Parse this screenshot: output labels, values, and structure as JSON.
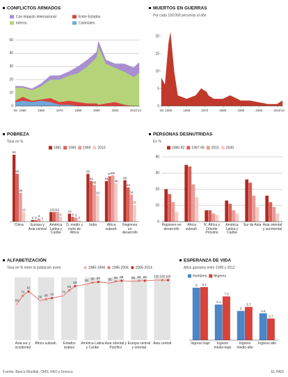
{
  "chart_data": [
    {
      "type": "area",
      "stacked": true,
      "title": "CONFLICTOS ARMADOS",
      "x": [
        1946,
        1950,
        1955,
        1960,
        1965,
        1970,
        1975,
        1980,
        1985,
        1990,
        1991,
        1995,
        2000,
        2005,
        2010,
        2013
      ],
      "series": [
        {
          "name": "Coloniales",
          "color": "#6fa8dc",
          "values": [
            3,
            4,
            3,
            4,
            3,
            1,
            1,
            0,
            0,
            0,
            0,
            0,
            0,
            0,
            0,
            0
          ]
        },
        {
          "name": "Entre Estados",
          "color": "#d9423a",
          "values": [
            1,
            3,
            1,
            1,
            3,
            2,
            3,
            3,
            2,
            2,
            1,
            2,
            3,
            1,
            0,
            0
          ]
        },
        {
          "name": "Interno",
          "color": "#b5d47a",
          "values": [
            10,
            7,
            8,
            10,
            14,
            17,
            19,
            22,
            28,
            35,
            44,
            30,
            26,
            25,
            22,
            25
          ]
        },
        {
          "name": "Con impacto internacional",
          "color": "#a98fd0",
          "values": [
            1,
            1,
            1,
            2,
            3,
            3,
            3,
            5,
            5,
            4,
            4,
            3,
            3,
            6,
            7,
            8
          ]
        }
      ],
      "xlim": [
        1946,
        2013
      ],
      "xticks": [
        {
          "value": 1946,
          "label": "'46"
        },
        1950,
        1960,
        1970,
        1980,
        1990,
        2000,
        2010,
        {
          "value": 2013,
          "label": "'13"
        }
      ],
      "ylim": [
        0,
        55
      ],
      "yticks": [
        0,
        10,
        20,
        30,
        40,
        50
      ],
      "grid": true
    },
    {
      "type": "area",
      "title": "MUERTOS EN GUERRAS",
      "subtitle": "Por cada 100.000 personas al año",
      "x": [
        1946,
        1948,
        1950,
        1951,
        1953,
        1955,
        1960,
        1965,
        1968,
        1971,
        1972,
        1975,
        1980,
        1984,
        1988,
        1990,
        1995,
        2000,
        2005,
        2010,
        2013
      ],
      "values": [
        8,
        6,
        18,
        21,
        10,
        3,
        2,
        3,
        5,
        4,
        3,
        2,
        2,
        3,
        2,
        1.5,
        1.5,
        1,
        0.5,
        0.5,
        1.5
      ],
      "color": "#c0392b",
      "xlim": [
        1946,
        2013
      ],
      "xticks": [
        {
          "value": 1946,
          "label": "'46"
        },
        1950,
        1960,
        1970,
        1980,
        1990,
        2000,
        2010,
        {
          "value": 2013,
          "label": "'13"
        }
      ],
      "ylim": [
        0,
        22
      ],
      "yticks": [
        0,
        5,
        10,
        15,
        20
      ]
    },
    {
      "type": "bar",
      "title": "POBREZA",
      "subtitle": "Tasa en %",
      "data_labels": true,
      "categories": [
        "China",
        "Europa y Asia central",
        "América Latina y Caribe",
        "O. medio y norte de África",
        "India",
        "África subsah.",
        "Regiones en desarrollo"
      ],
      "series": [
        {
          "name": "1981",
          "color": "#b22a22",
          "values": [
            84,
            2,
            12,
            10,
            60,
            51,
            52
          ]
        },
        {
          "name": "1990",
          "color": "#d9605a",
          "values": [
            60,
            2,
            12,
            6,
            51,
            57,
            43
          ]
        },
        {
          "name": "1999",
          "color": "#e99a94",
          "values": [
            36,
            4,
            12,
            5,
            46,
            58,
            34
          ]
        },
        {
          "name": "2010",
          "color": "#f5c9c5",
          "values": [
            12,
            1,
            6,
            2,
            33,
            48,
            21
          ]
        }
      ]
    },
    {
      "type": "bar",
      "title": "PERSONAS DESNUTRIDAS",
      "subtitle": "En %",
      "categories": [
        "Regiones en desarrollo",
        "África subsah.",
        "N. África y Oriente Próximo",
        "América Latina y Caribe",
        "Sur de Asia",
        "Asia oriental y suroriental"
      ],
      "series": [
        {
          "name": "1990-92",
          "color": "#b22a22",
          "values": [
            20,
            35,
            7,
            13,
            26,
            16
          ]
        },
        {
          "name": "1997-99",
          "color": "#d9605a",
          "values": [
            17,
            34,
            7,
            11,
            24,
            12
          ]
        },
        {
          "name": "2015",
          "color": "#e99a94",
          "values": [
            12,
            23,
            5,
            7,
            16,
            9
          ]
        },
        {
          "name": "2030",
          "color": "#f5c9c5",
          "values": [
            6,
            15,
            4,
            5,
            9,
            5
          ]
        }
      ],
      "ylim": [
        0,
        40
      ],
      "yticks": [
        0,
        10,
        20,
        30,
        40
      ],
      "grid": true
    },
    {
      "type": "line",
      "title": "ALFABETIZACIÓN",
      "subtitle": "Tasa en % entre la población joven",
      "data_labels": true,
      "categories": [
        "Asia sur y occidental",
        "África subsah.",
        "Estados árabes",
        "América Latina y Caribe",
        "Asia oriental y Pacífico",
        "Europa central y oriental",
        "Asia central"
      ],
      "series": [
        {
          "name": "1985-1994",
          "color": "#f2b6b0",
          "values": [
            60,
            66,
            74,
            93,
            95,
            98,
            100
          ]
        },
        {
          "name": "1995-2004",
          "color": "#e07a70",
          "values": [
            74,
            68,
            83,
            96,
            98,
            99,
            100
          ]
        },
        {
          "name": "2005-2014",
          "color": "#c0392b",
          "values": [
            81,
            70,
            90,
            97,
            99,
            99,
            100
          ]
        }
      ]
    },
    {
      "type": "bar",
      "title": "ESPERANZA DE VIDA",
      "subtitle": "Años ganados entre 1990 y 2012",
      "data_labels": true,
      "categories": [
        "Ingreso bajo",
        "Ingreso medio-bajo",
        "Ingreso medio-alto",
        "Ingreso alto"
      ],
      "series": [
        {
          "name": "Hombres",
          "color": "#4a86c8",
          "values": [
            9,
            6.1,
            5,
            4.6
          ]
        },
        {
          "name": "Mujeres",
          "color": "#d9423a",
          "values": [
            9.1,
            7.5,
            5.7,
            3.7
          ]
        }
      ]
    }
  ],
  "source": "Fuente: Banco Mundial, OMS, FAO y Unesco.",
  "credit": "EL PAÍS"
}
